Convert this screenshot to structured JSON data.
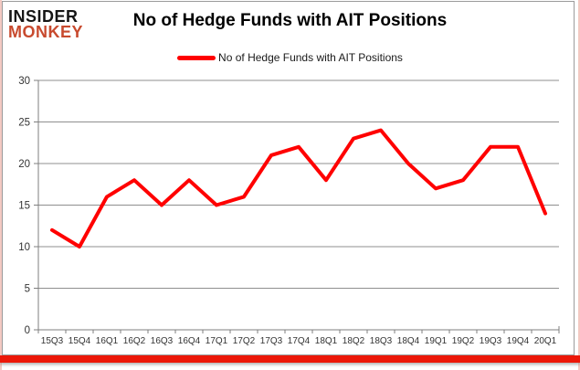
{
  "logo": {
    "line1": "INSIDER",
    "line2": "MONKEY"
  },
  "header": {
    "title": "No of Hedge Funds with AIT Positions"
  },
  "legend": {
    "label": "No of Hedge Funds with AIT Positions"
  },
  "colors": {
    "line": "#ff0000",
    "logo_accent": "#c84a2e",
    "bottom_bar": "#ec1708",
    "gridline": "#8f8f8f",
    "axis": "#7f7f7f",
    "axis_text": "#333333"
  },
  "chart_data": {
    "type": "line",
    "title": "No of Hedge Funds with AIT Positions",
    "categories": [
      "15Q3",
      "15Q4",
      "16Q1",
      "16Q2",
      "16Q3",
      "16Q4",
      "17Q1",
      "17Q2",
      "17Q3",
      "17Q4",
      "18Q1",
      "18Q2",
      "18Q3",
      "18Q4",
      "19Q1",
      "19Q2",
      "19Q3",
      "19Q4",
      "20Q1"
    ],
    "series": [
      {
        "name": "No of Hedge Funds with AIT Positions",
        "values": [
          12,
          10,
          16,
          18,
          15,
          18,
          15,
          16,
          21,
          22,
          18,
          23,
          24,
          20,
          17,
          18,
          22,
          22,
          14
        ]
      }
    ],
    "xlabel": "",
    "ylabel": "",
    "ylim": [
      0,
      30
    ],
    "y_ticks": [
      0,
      5,
      10,
      15,
      20,
      25,
      30
    ],
    "grid": true,
    "legend_position": "top-center"
  }
}
